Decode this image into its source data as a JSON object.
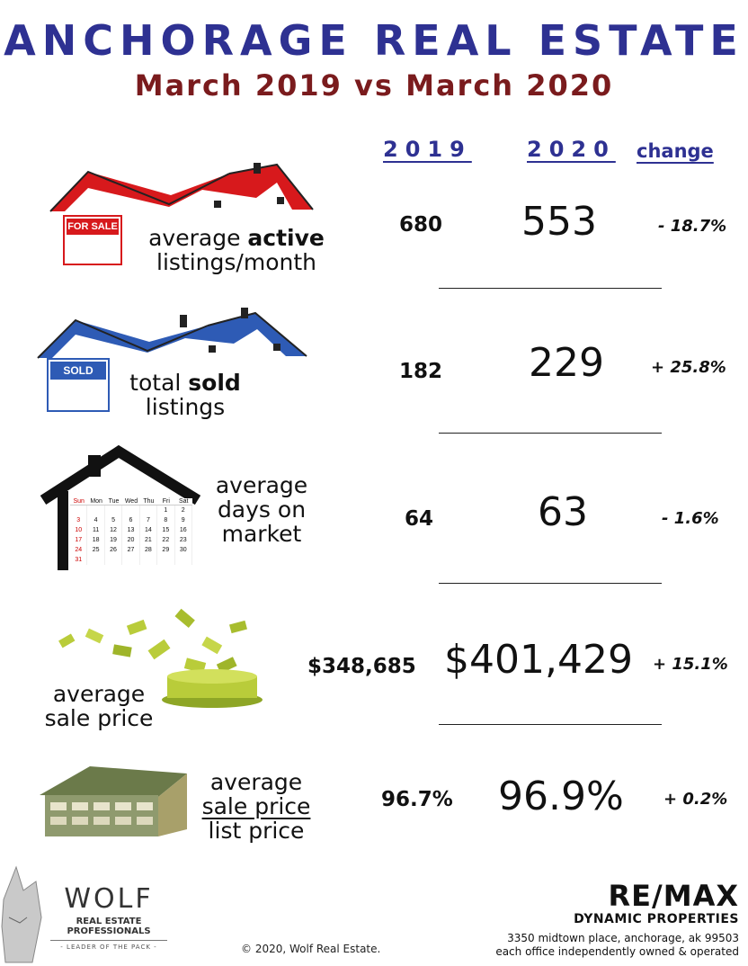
{
  "header": {
    "title": "ANCHORAGE REAL ESTATE",
    "subtitle": "March 2019 vs March 2020"
  },
  "columns": {
    "y2019": "2019",
    "y2020": "2020",
    "change": "change"
  },
  "metrics": [
    {
      "label_pre": "average ",
      "label_bold": "active",
      "label_line2": "listings/month",
      "v2019": "680",
      "v2020": "553",
      "change": "- 18.7%",
      "sign_text": "FOR SALE",
      "color": "#d7191c"
    },
    {
      "label_pre": "total ",
      "label_bold": "sold",
      "label_line2": "listings",
      "v2019": "182",
      "v2020": "229",
      "change": "+ 25.8%",
      "sign_text": "SOLD",
      "color": "#2e5bb5"
    },
    {
      "label_line1": "average",
      "label_line2": "days on",
      "label_line3": "market",
      "v2019": "64",
      "v2020": "63",
      "change": "- 1.6%"
    },
    {
      "label_line1": "average",
      "label_line2": "sale price",
      "v2019": "$348,685",
      "v2020": "$401,429",
      "change": "+ 15.1%"
    },
    {
      "label_line1": "average",
      "label_line2": "sale price",
      "label_line3": "list price",
      "v2019": "96.7%",
      "v2020": "96.9%",
      "change": "+ 0.2%"
    }
  ],
  "calendar": {
    "days": [
      "Sun",
      "Mon",
      "Tue",
      "Wed",
      "Thu",
      "Fri",
      "Sat"
    ],
    "rows": [
      [
        "",
        "",
        "",
        "",
        "",
        "1",
        "2"
      ],
      [
        "3",
        "4",
        "5",
        "6",
        "7",
        "8",
        "9"
      ],
      [
        "10",
        "11",
        "12",
        "13",
        "14",
        "15",
        "16"
      ],
      [
        "17",
        "18",
        "19",
        "20",
        "21",
        "22",
        "23"
      ],
      [
        "24",
        "25",
        "26",
        "27",
        "28",
        "29",
        "30"
      ],
      [
        "31",
        "",
        "",
        "",
        "",
        "",
        ""
      ]
    ]
  },
  "footer": {
    "wolf_name": "WOLF",
    "wolf_sub": "REAL ESTATE PROFESSIONALS",
    "wolf_tag": "- LEADER OF THE PACK -",
    "copyright": "© 2020, Wolf Real Estate.",
    "remax_name": "RE/MAX",
    "remax_office": "DYNAMIC PROPERTIES",
    "remax_addr1": "3350 midtown place, anchorage, ak 99503",
    "remax_addr2": "each office independently owned & operated"
  }
}
